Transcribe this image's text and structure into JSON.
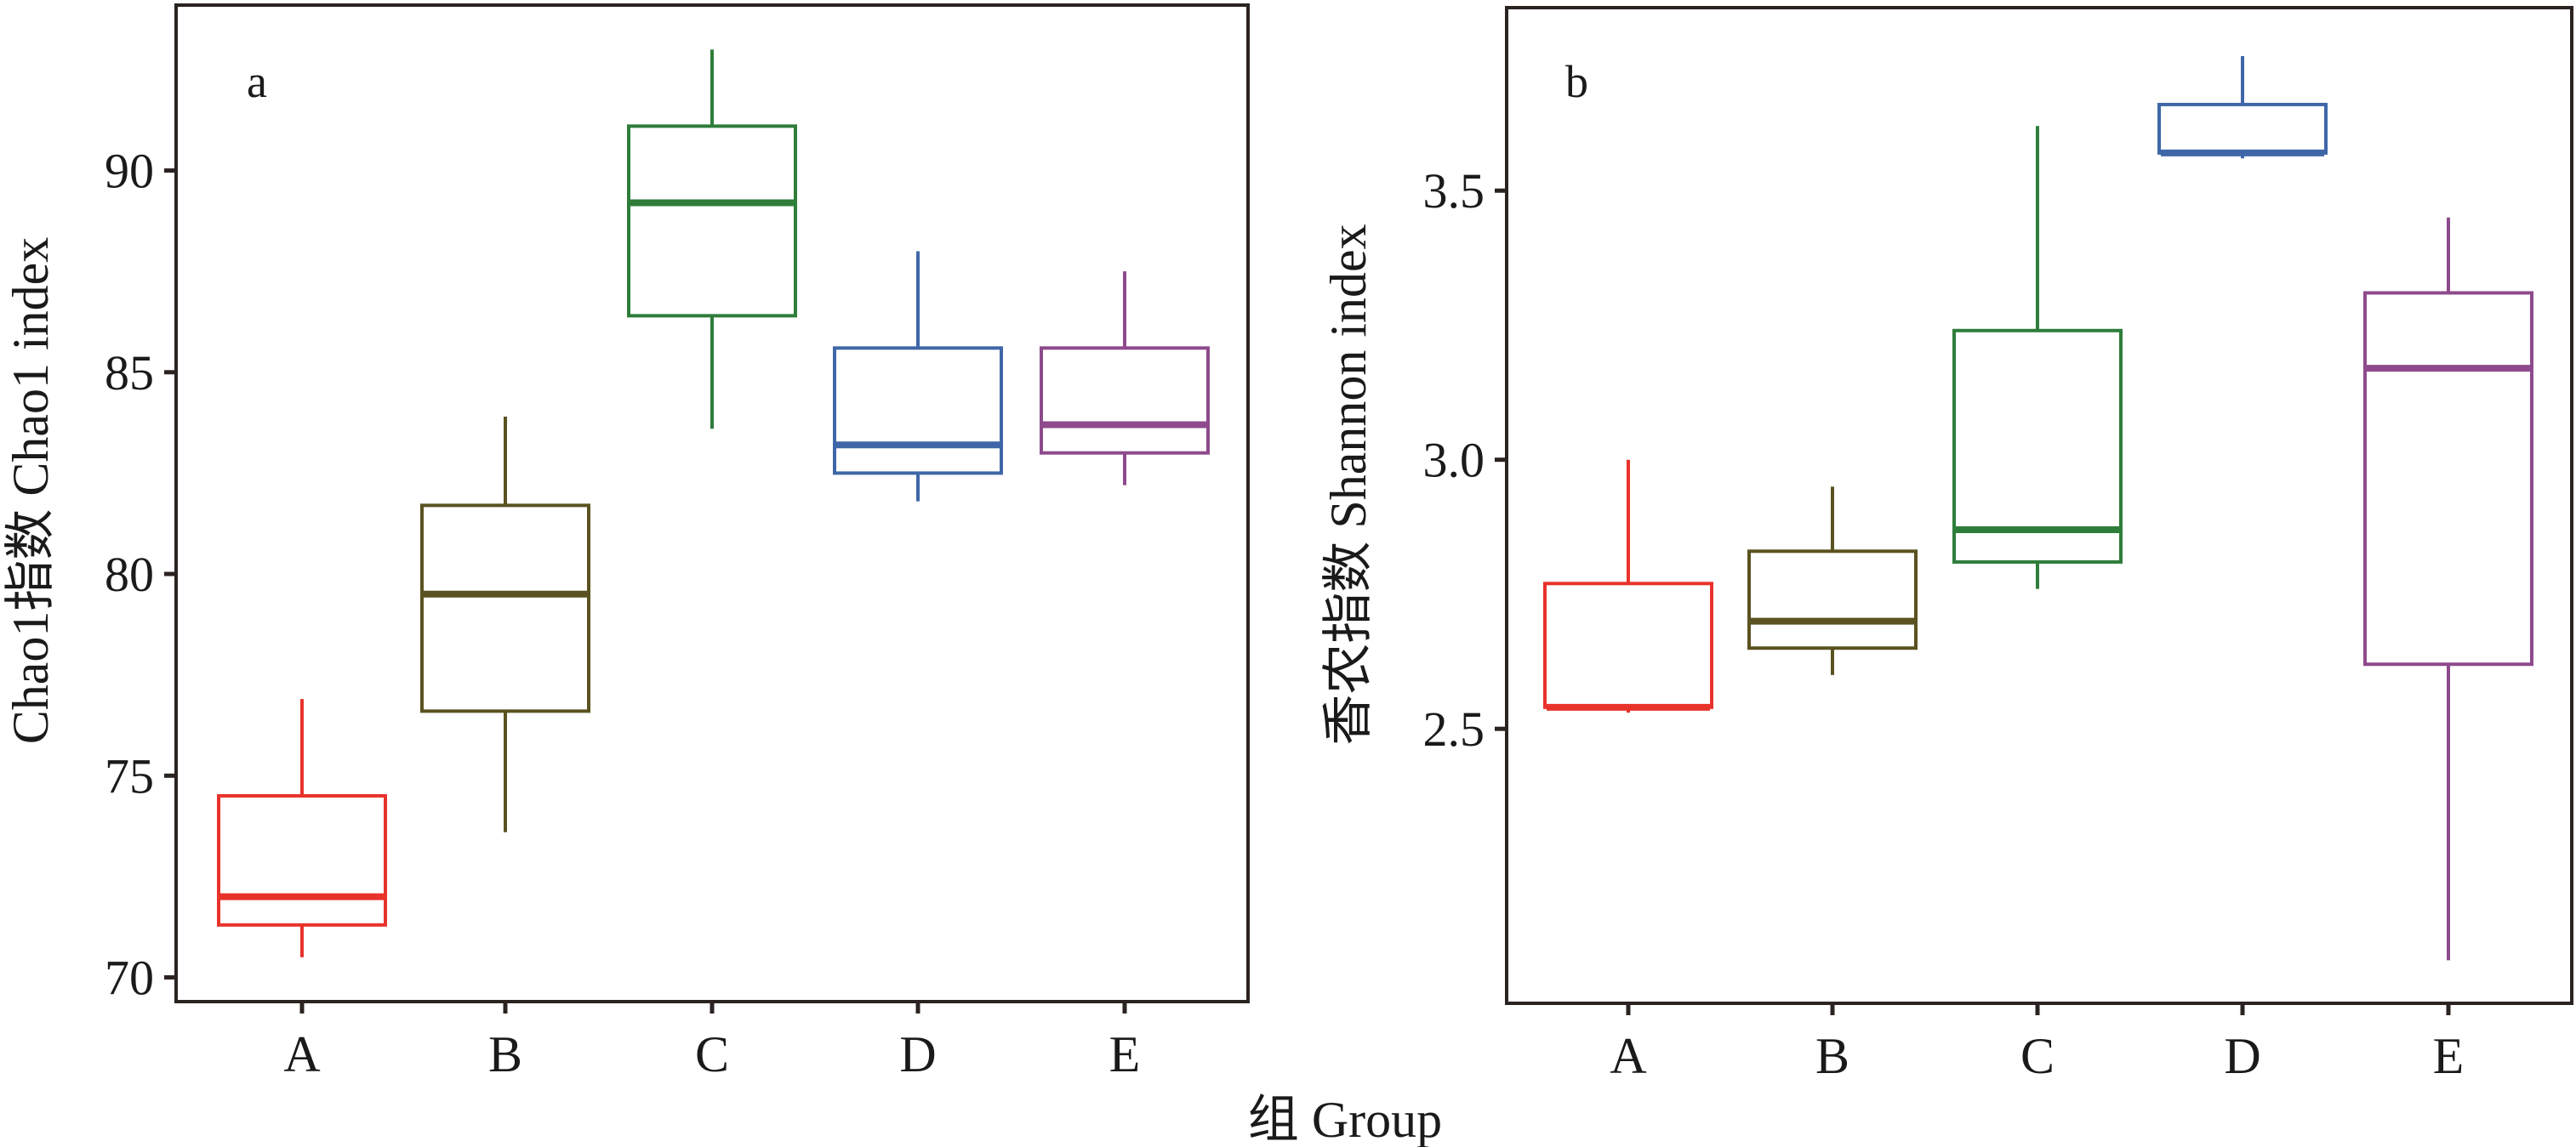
{
  "figure": {
    "shared_xlabel": "组 Group"
  },
  "chart_data": [
    {
      "type": "boxplot",
      "panel_label": "a",
      "title": "",
      "xlabel": "组 Group",
      "ylabel": "Chao1指数 Chao1 index",
      "categories": [
        "A",
        "B",
        "C",
        "D",
        "E"
      ],
      "yticks": [
        70,
        75,
        80,
        85,
        90
      ],
      "ytick_labels": [
        "70",
        "75",
        "80",
        "85",
        "90"
      ],
      "ylim": [
        69.4,
        94.1
      ],
      "grid": false,
      "legend": "none",
      "series": [
        {
          "name": "A",
          "color": "#e8332b",
          "whisker_low": 70.5,
          "q1": 71.3,
          "median": 72.0,
          "q3": 74.5,
          "whisker_high": 76.9
        },
        {
          "name": "B",
          "color": "#5a5220",
          "whisker_low": 73.6,
          "q1": 76.6,
          "median": 79.5,
          "q3": 81.7,
          "whisker_high": 83.9
        },
        {
          "name": "C",
          "color": "#2e7d3a",
          "whisker_low": 83.6,
          "q1": 86.4,
          "median": 89.2,
          "q3": 91.1,
          "whisker_high": 93.0
        },
        {
          "name": "D",
          "color": "#3f67a8",
          "whisker_low": 81.8,
          "q1": 82.5,
          "median": 83.2,
          "q3": 85.6,
          "whisker_high": 88.0
        },
        {
          "name": "E",
          "color": "#8e4a8c",
          "whisker_low": 82.2,
          "q1": 83.0,
          "median": 83.7,
          "q3": 85.6,
          "whisker_high": 87.5
        }
      ]
    },
    {
      "type": "boxplot",
      "panel_label": "b",
      "title": "",
      "xlabel": "组 Group",
      "ylabel": "香农指数 Shannon index",
      "categories": [
        "A",
        "B",
        "C",
        "D",
        "E"
      ],
      "yticks": [
        2.5,
        3.0,
        3.5
      ],
      "ytick_labels": [
        "2.5",
        "3.0",
        "3.5"
      ],
      "ylim": [
        1.99,
        3.84
      ],
      "grid": false,
      "legend": "none",
      "series": [
        {
          "name": "A",
          "color": "#e8332b",
          "whisker_low": 2.53,
          "q1": 2.54,
          "median": 2.54,
          "q3": 2.77,
          "whisker_high": 3.0
        },
        {
          "name": "B",
          "color": "#5a5220",
          "whisker_low": 2.6,
          "q1": 2.65,
          "median": 2.7,
          "q3": 2.83,
          "whisker_high": 2.95
        },
        {
          "name": "C",
          "color": "#2e7d3a",
          "whisker_low": 2.76,
          "q1": 2.81,
          "median": 2.87,
          "q3": 3.24,
          "whisker_high": 3.62
        },
        {
          "name": "D",
          "color": "#3f67a8",
          "whisker_low": 3.56,
          "q1": 3.57,
          "median": 3.57,
          "q3": 3.66,
          "whisker_high": 3.75
        },
        {
          "name": "E",
          "color": "#8e4a8c",
          "whisker_low": 2.07,
          "q1": 2.62,
          "median": 3.17,
          "q3": 3.31,
          "whisker_high": 3.45
        }
      ]
    }
  ]
}
